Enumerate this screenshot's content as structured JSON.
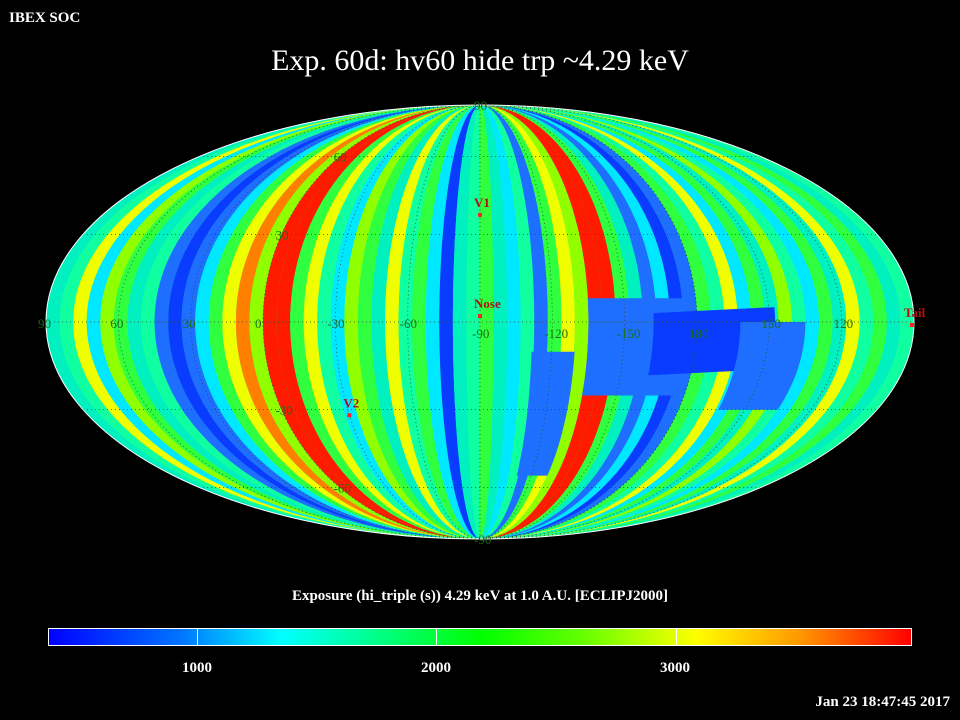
{
  "header": {
    "org": "IBEX SOC",
    "title": "Exp.   60d: hv60 hide trp ~4.29 keV"
  },
  "map": {
    "projection": "Mollweide",
    "markers": [
      {
        "name": "V1",
        "lon": -90,
        "lat": 37,
        "color": "#ff2020"
      },
      {
        "name": "Nose",
        "lon": -90,
        "lat": 2,
        "color": "#ff2020"
      },
      {
        "name": "V2",
        "lon": -30,
        "lat": -32,
        "color": "#ff2020"
      },
      {
        "name": "Tail",
        "lon": 90,
        "lat": -1,
        "color": "#ff2020"
      }
    ],
    "lon_labels": [
      "60",
      "30",
      "0",
      "-30",
      "-60",
      "-90",
      "-120",
      "-150",
      "180",
      "150",
      "120",
      "90"
    ],
    "lat_labels": [
      "90",
      "60",
      "30",
      "-30",
      "-60",
      "-90"
    ],
    "label_color": "#1a6e1a"
  },
  "colorbar": {
    "title": "Exposure (hi_triple (s))  4.29 keV at 1.0 A.U. [ECLIPJ2000]",
    "ticks": [
      "1000",
      "2000",
      "3000"
    ],
    "tick_values": [
      1000,
      2000,
      3000
    ],
    "colors": [
      "#0000ff",
      "#0072ff",
      "#00ffff",
      "#00ff88",
      "#00ff00",
      "#66ff00",
      "#ffff00",
      "#ff9900",
      "#ff0000"
    ]
  },
  "footer": {
    "timestamp": "Jan 23 18:47:45 2017"
  }
}
